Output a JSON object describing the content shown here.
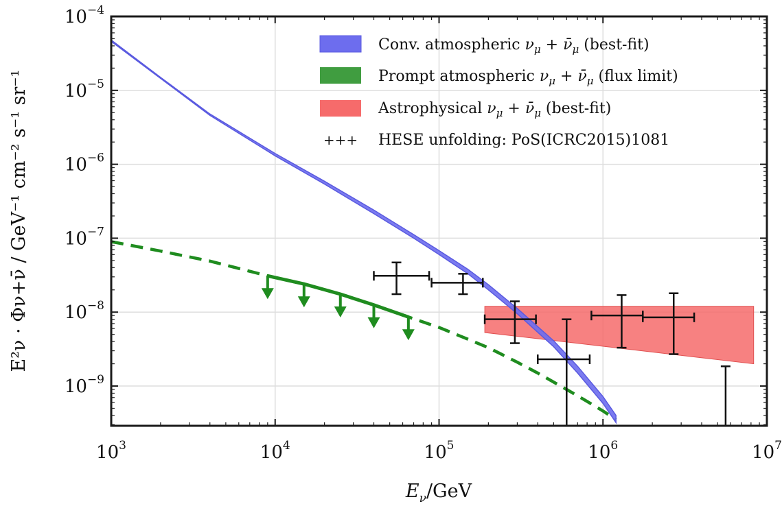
{
  "chart_data": {
    "type": "line",
    "x_scale": "log",
    "y_scale": "log",
    "xlim": [
      1000,
      10000000
    ],
    "ylim": [
      2.9e-10,
      0.0001
    ],
    "grid": true,
    "xlabel": {
      "pre": "E",
      "sub": "ν",
      "post": "/GeV"
    },
    "ylabel": "E²ν · Φν+ν̄ / GeV⁻¹ cm⁻² s⁻¹ sr⁻¹",
    "x_ticks": [
      {
        "value": 1000,
        "base": "10",
        "exp": "3"
      },
      {
        "value": 10000,
        "base": "10",
        "exp": "4"
      },
      {
        "value": 100000,
        "base": "10",
        "exp": "5"
      },
      {
        "value": 1000000,
        "base": "10",
        "exp": "6"
      },
      {
        "value": 10000000,
        "base": "10",
        "exp": "7"
      }
    ],
    "y_ticks": [
      {
        "value": 1e-09,
        "base": "10",
        "exp": "−9"
      },
      {
        "value": 1e-08,
        "base": "10",
        "exp": "−8"
      },
      {
        "value": 1e-07,
        "base": "10",
        "exp": "−7"
      },
      {
        "value": 1e-06,
        "base": "10",
        "exp": "−6"
      },
      {
        "value": 1e-05,
        "base": "10",
        "exp": "−5"
      },
      {
        "value": 0.0001,
        "base": "10",
        "exp": "−4"
      }
    ],
    "legend_position": "top-right",
    "series": [
      {
        "name": "Conv. atmospheric νμ + ν̄μ (best-fit)",
        "kind": "band",
        "color": "#6d6dee",
        "x": [
          1000,
          2000,
          4000,
          10000,
          20000,
          40000,
          70000,
          100000,
          150000,
          200000,
          300000,
          500000,
          700000,
          1000000,
          1200000
        ],
        "lower": [
          4.6e-05,
          1.45e-05,
          4.6e-06,
          1.3e-06,
          5.4e-07,
          2.15e-07,
          1e-07,
          6e-08,
          3.3e-08,
          2e-08,
          9.5e-09,
          3.4e-09,
          1.5e-09,
          5.8e-10,
          3.2e-10
        ],
        "upper": [
          4.8e-05,
          1.5e-05,
          4.8e-06,
          1.4e-06,
          5.9e-07,
          2.4e-07,
          1.12e-07,
          6.8e-08,
          3.8e-08,
          2.35e-08,
          1.12e-08,
          4.1e-09,
          1.85e-09,
          7.2e-10,
          4e-10
        ]
      },
      {
        "name": "Prompt atmospheric νμ + ν̄μ (flux limit)",
        "kind": "line-limit",
        "color": "#1f8c1f",
        "x": [
          1000,
          2000,
          4000,
          9000,
          15000,
          25000,
          40000,
          65000,
          100000,
          150000,
          200000,
          300000,
          400000,
          600000,
          800000,
          1000000,
          1200000
        ],
        "values": [
          9e-08,
          6.7e-08,
          4.9e-08,
          3.1e-08,
          2.4e-08,
          1.75e-08,
          1.25e-08,
          8.6e-09,
          6.2e-09,
          4.3e-09,
          3.3e-09,
          2.1e-09,
          1.5e-09,
          9e-10,
          6.2e-10,
          4.6e-10,
          3.5e-10
        ],
        "solid_range": [
          9000,
          65000
        ],
        "arrows_at": [
          9000,
          15000,
          25000,
          40000,
          65000
        ]
      },
      {
        "name": "Astrophysical νμ + ν̄μ (best-fit)",
        "kind": "band",
        "color": "#f66b6b",
        "x": [
          190000,
          8300000
        ],
        "lower": [
          5.3e-09,
          2e-09
        ],
        "upper": [
          1.2e-08,
          1.2e-08
        ]
      },
      {
        "name": "HESE unfolding: PoS(ICRC2015)1081",
        "kind": "errorbar",
        "color": "#111111",
        "points": [
          {
            "x": 55000,
            "y": 3.1e-08,
            "xlo": 40000,
            "xhi": 87000,
            "ylo": 1.75e-08,
            "yhi": 4.7e-08
          },
          {
            "x": 140000,
            "y": 2.5e-08,
            "xlo": 90000,
            "xhi": 185000,
            "ylo": 1.75e-08,
            "yhi": 3.3e-08
          },
          {
            "x": 290000,
            "y": 8e-09,
            "xlo": 190000,
            "xhi": 390000,
            "ylo": 3.8e-09,
            "yhi": 1.4e-08
          },
          {
            "x": 600000,
            "y": 2.3e-09,
            "xlo": 400000,
            "xhi": 830000,
            "ylo": 2.9e-10,
            "yhi": 8e-09
          },
          {
            "x": 1300000,
            "y": 9e-09,
            "xlo": 850000,
            "xhi": 1750000,
            "ylo": 3.3e-09,
            "yhi": 1.7e-08
          },
          {
            "x": 2700000,
            "y": 8.5e-09,
            "xlo": 1750000,
            "xhi": 3600000,
            "ylo": 2.7e-09,
            "yhi": 1.8e-08
          },
          {
            "x": 5600000,
            "y": null,
            "xlo": null,
            "xhi": null,
            "ylo": 2.9e-10,
            "yhi": 1.85e-09
          }
        ]
      }
    ]
  },
  "legend": {
    "conv_label_pre": "Conv.  atmospheric ",
    "conv_label_post": " (best-fit)",
    "prompt_label_pre": "Prompt atmospheric ",
    "prompt_label_post": " (flux limit)",
    "astro_label_pre": "Astrophysical ",
    "astro_label_post": " (best-fit)",
    "hese_marker": "+++",
    "hese_label": "HESE unfolding: PoS(ICRC2015)1081"
  }
}
